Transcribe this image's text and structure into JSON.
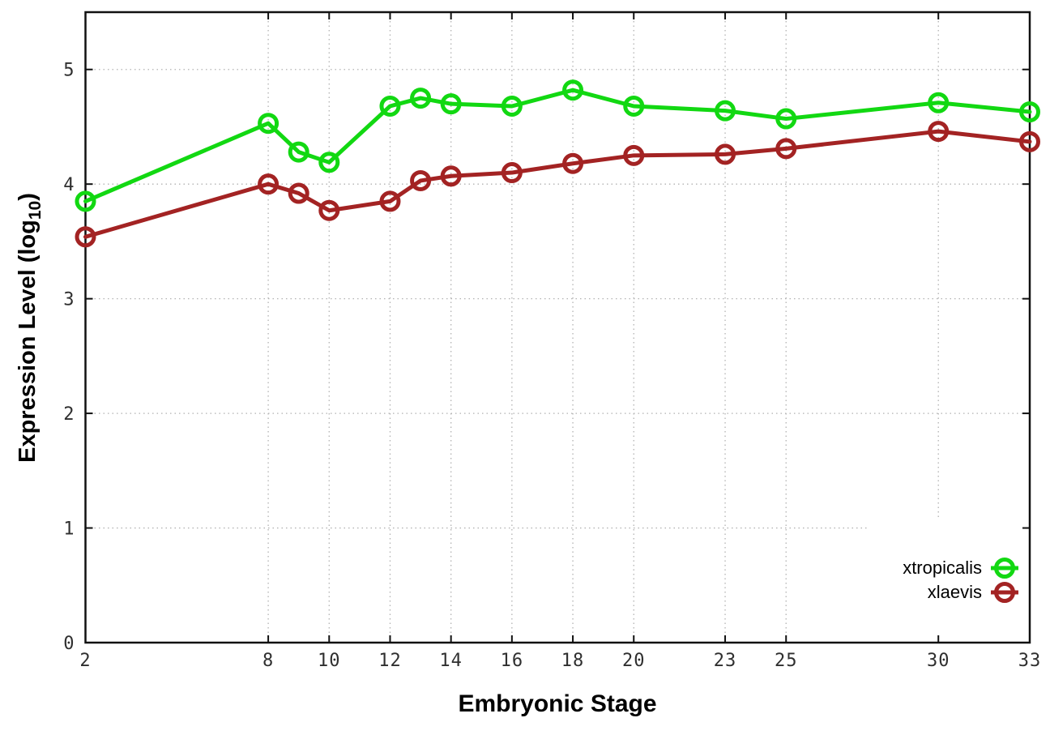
{
  "figure": {
    "background": "#ffffff",
    "frame_color": "#111111",
    "grid_color": "#b2b2b2",
    "tick_label_color": "#2f2f2f"
  },
  "chart_data": {
    "type": "line",
    "title": "",
    "xlabel": "Embryonic Stage",
    "ylabel_prefix": "Expression Level (log",
    "ylabel_sub": "10",
    "ylabel_suffix": ")",
    "xlim": [
      2,
      33
    ],
    "ylim": [
      0,
      5.5
    ],
    "xticks": [
      2,
      8,
      10,
      12,
      14,
      16,
      18,
      20,
      23,
      25,
      30,
      33
    ],
    "yticks": [
      0,
      1,
      2,
      3,
      4,
      5
    ],
    "grid": "dotted both axes",
    "legend_position": "inside bottom-right, opaque white box",
    "marker": "open-circle",
    "x": [
      2,
      8,
      9,
      10,
      12,
      13,
      14,
      16,
      18,
      20,
      23,
      25,
      30,
      33
    ],
    "series": [
      {
        "name": "xtropicalis",
        "color": "#12d812",
        "values": [
          3.85,
          4.53,
          4.28,
          4.19,
          4.68,
          4.75,
          4.7,
          4.68,
          4.82,
          4.68,
          4.64,
          4.57,
          4.71,
          4.63
        ]
      },
      {
        "name": "xlaevis",
        "color": "#a32323",
        "values": [
          3.54,
          4.0,
          3.92,
          3.77,
          3.85,
          4.03,
          4.07,
          4.1,
          4.18,
          4.25,
          4.26,
          4.31,
          4.46,
          4.37
        ]
      }
    ]
  }
}
